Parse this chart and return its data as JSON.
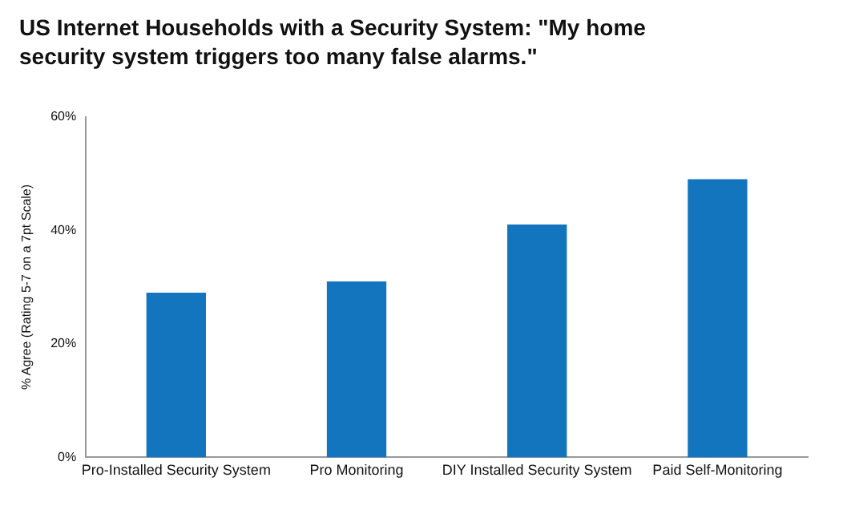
{
  "chart_data": {
    "type": "bar",
    "title": "US Internet Households with a Security System: \"My home security system triggers too many false alarms.\"",
    "ylabel": "% Agree (Rating 5-7 on a 7pt Scale)",
    "categories": [
      "Pro-Installed Security System",
      "Pro Monitoring",
      "DIY Installed Security System",
      "Paid Self-Monitoring"
    ],
    "values": [
      29,
      31,
      41,
      49
    ],
    "color": "#1475bf",
    "ylim": [
      0,
      60
    ],
    "yticks": [
      {
        "value": 0,
        "label": "0%"
      },
      {
        "value": 20,
        "label": "20%"
      },
      {
        "value": 40,
        "label": "40%"
      },
      {
        "value": 60,
        "label": "60%"
      }
    ],
    "grid": false,
    "legend": false
  }
}
